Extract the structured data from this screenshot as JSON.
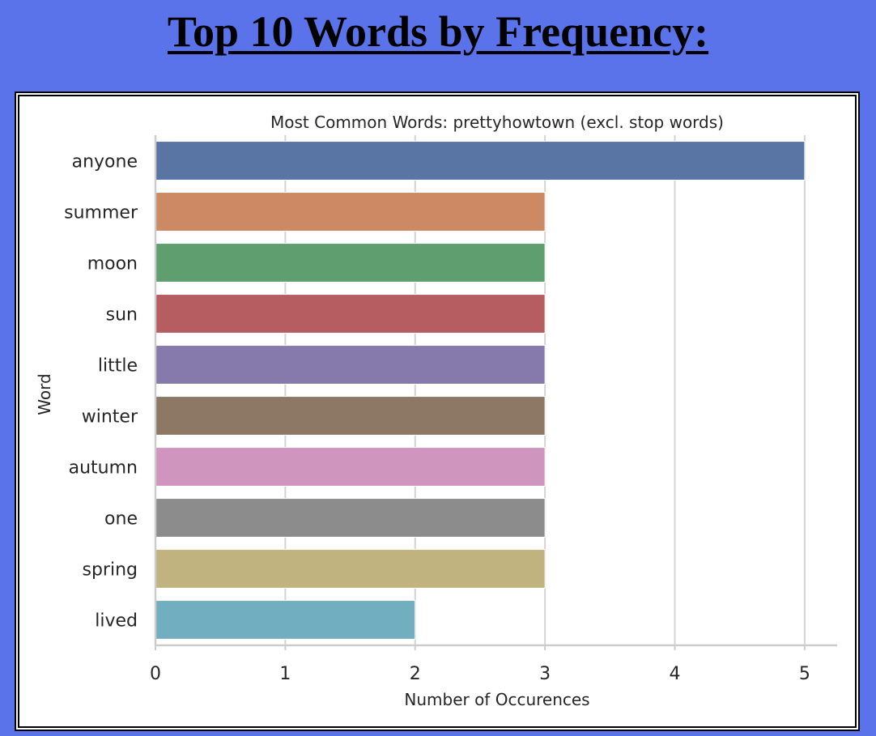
{
  "page": {
    "title": "Top 10 Words by Frequency:"
  },
  "chart_data": {
    "type": "bar",
    "orientation": "horizontal",
    "title": "Most Common Words: prettyhowtown (excl. stop words)",
    "xlabel": "Number of Occurences",
    "ylabel": "Word",
    "categories": [
      "anyone",
      "summer",
      "moon",
      "sun",
      "little",
      "winter",
      "autumn",
      "one",
      "spring",
      "lived"
    ],
    "values": [
      5,
      3,
      3,
      3,
      3,
      3,
      3,
      3,
      3,
      2
    ],
    "colors": [
      "#5975a4",
      "#cc8963",
      "#5f9e6e",
      "#b55d60",
      "#857aab",
      "#8d7866",
      "#d095bf",
      "#8c8c8c",
      "#c1b37f",
      "#71aec0"
    ],
    "xlim": [
      0,
      5.25
    ],
    "xticks": [
      0,
      1,
      2,
      3,
      4,
      5
    ],
    "grid": "vertical"
  }
}
